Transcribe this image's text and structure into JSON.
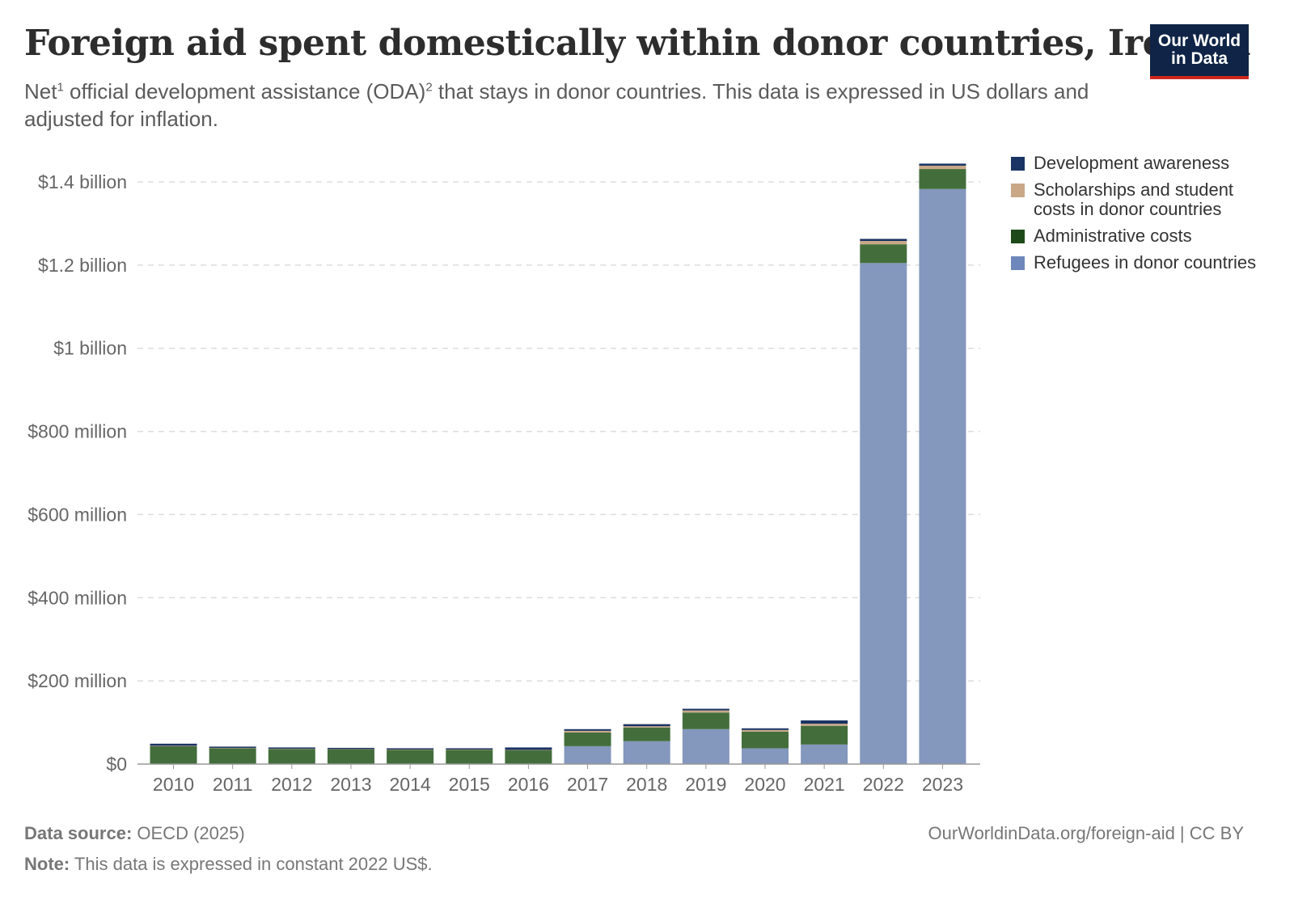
{
  "header": {
    "title": "Foreign aid spent domestically within donor countries, Ireland",
    "subtitle_net": "Net",
    "subtitle_sup1": "1",
    "subtitle_mid": " official development assistance (ODA)",
    "subtitle_sup2": "2",
    "subtitle_rest": " that stays in donor countries. This data is expressed in US dollars and adjusted for inflation."
  },
  "logo": {
    "line1": "Our World",
    "line2": "in Data"
  },
  "chart_data": {
    "type": "bar",
    "stacked": true,
    "categories": [
      "2010",
      "2011",
      "2012",
      "2013",
      "2014",
      "2015",
      "2016",
      "2017",
      "2018",
      "2019",
      "2020",
      "2021",
      "2022",
      "2023"
    ],
    "series": [
      {
        "name": "Refugees in donor countries",
        "color": "#8497bd",
        "values": [
          0,
          0,
          0,
          0,
          0,
          0,
          0,
          43,
          55,
          84,
          38,
          47,
          1205,
          1383
        ]
      },
      {
        "name": "Administrative costs",
        "color": "#436e3c",
        "values": [
          43,
          38,
          36,
          35,
          34,
          34,
          33,
          33,
          33,
          40,
          40,
          45,
          45,
          48
        ]
      },
      {
        "name": "Scholarships and student costs in donor countries",
        "color": "#c9a887",
        "values": [
          1,
          1,
          1,
          1,
          1,
          1,
          1,
          4,
          3,
          5,
          4,
          5,
          8,
          8
        ]
      },
      {
        "name": "Development awareness",
        "color": "#1a3463",
        "values": [
          5,
          3,
          3,
          3,
          3,
          3,
          6,
          4,
          5,
          4,
          4,
          8,
          5,
          5
        ]
      }
    ],
    "y_ticks": [
      {
        "value": 0,
        "label": "$0"
      },
      {
        "value": 200,
        "label": "$200 million"
      },
      {
        "value": 400,
        "label": "$400 million"
      },
      {
        "value": 600,
        "label": "$600 million"
      },
      {
        "value": 800,
        "label": "$800 million"
      },
      {
        "value": 1000,
        "label": "$1 billion"
      },
      {
        "value": 1200,
        "label": "$1.2 billion"
      },
      {
        "value": 1400,
        "label": "$1.4 billion"
      }
    ],
    "ylim": [
      0,
      1450
    ],
    "grid": true,
    "legend_position": "right"
  },
  "legend": {
    "items": [
      {
        "label": "Development awareness",
        "color": "#1a3463"
      },
      {
        "label": "Scholarships and student costs in donor countries",
        "color": "#c9a887"
      },
      {
        "label": "Administrative costs",
        "color": "#1e4a1a"
      },
      {
        "label": "Refugees in donor countries",
        "color": "#6e88bc"
      }
    ]
  },
  "footer": {
    "source_label": "Data source:",
    "source_text": " OECD (2025)",
    "note_label": "Note:",
    "note_text": " This data is expressed in constant 2022 US$.",
    "credit": "OurWorldinData.org/foreign-aid | CC BY"
  }
}
